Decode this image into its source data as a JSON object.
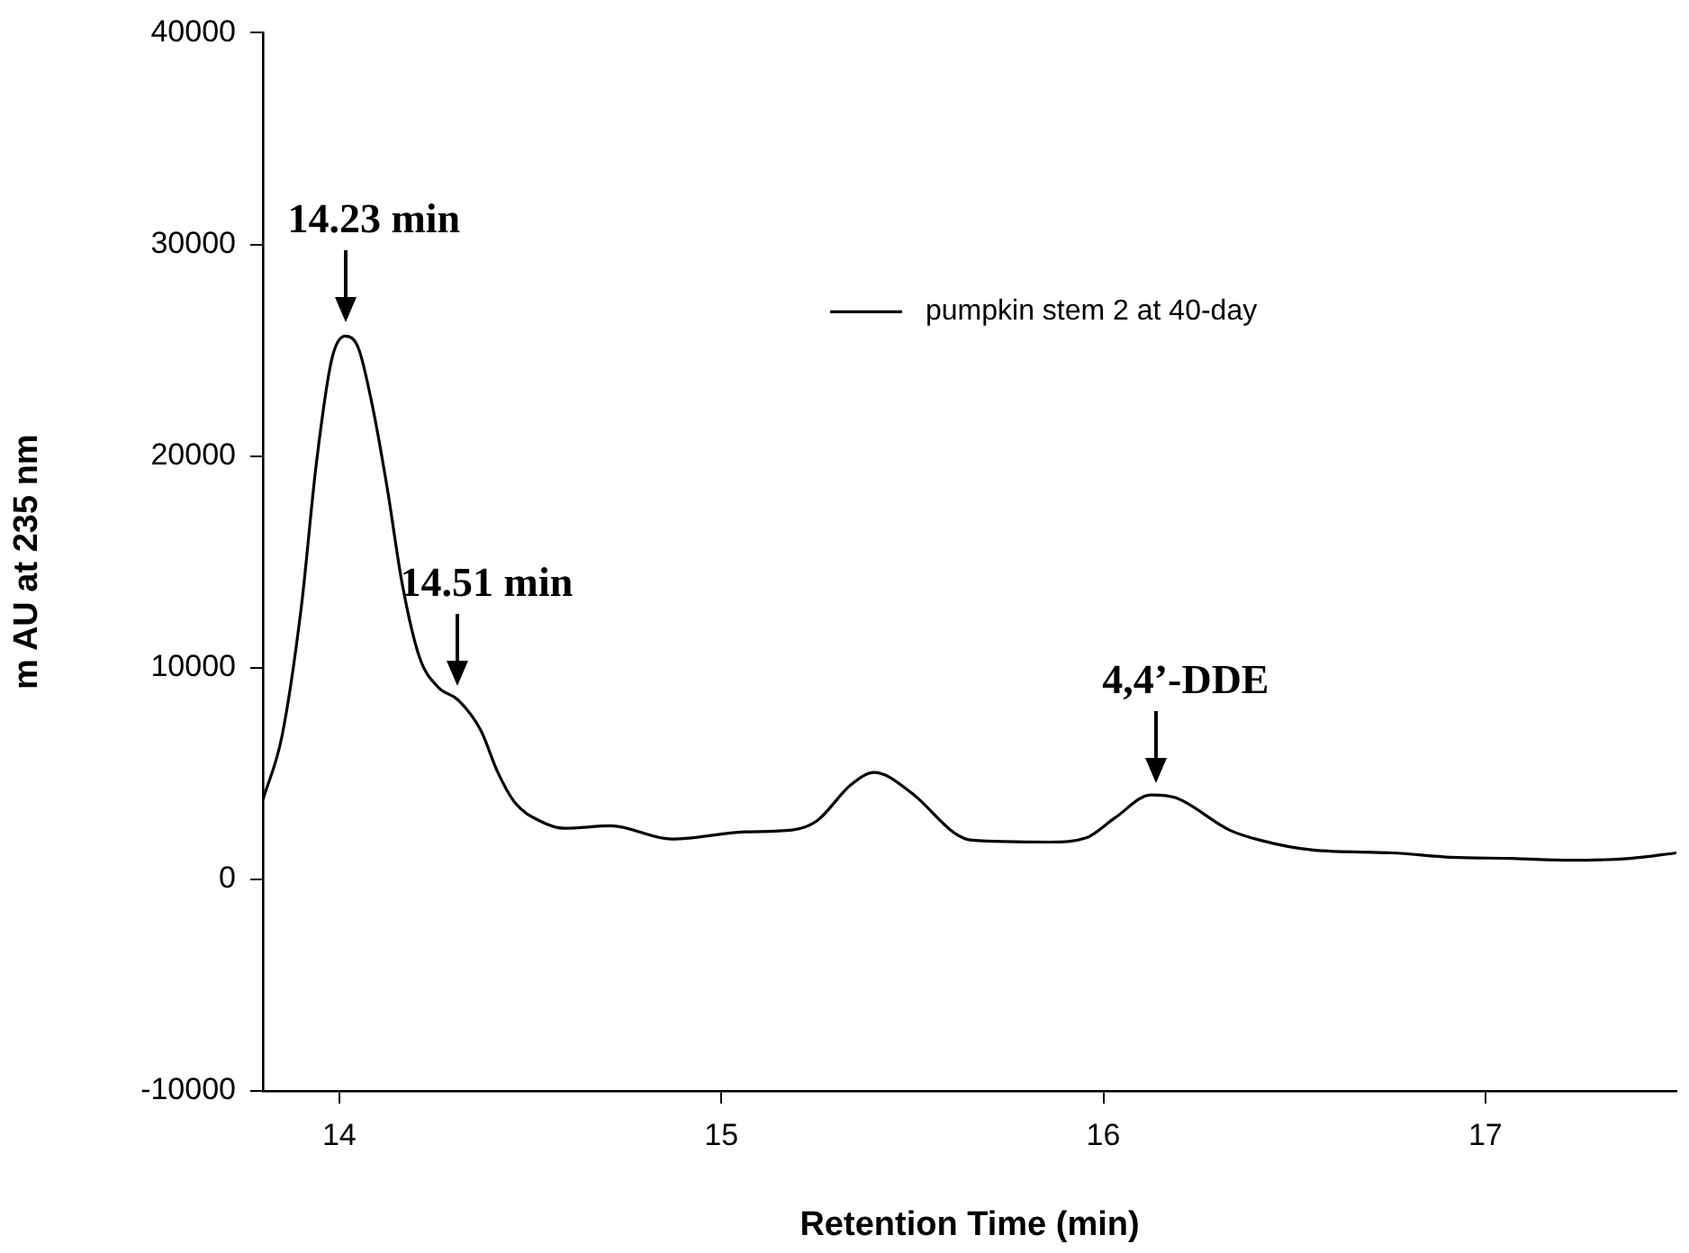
{
  "chart_data": {
    "type": "line",
    "xlabel": "Retention Time (min)",
    "ylabel": "m AU at 235 nm",
    "xlim": [
      13.8,
      17.5
    ],
    "xticks": [
      14,
      15,
      16,
      17
    ],
    "ylim": [
      -10000,
      40000
    ],
    "yticks": [
      -10000,
      0,
      10000,
      20000,
      30000,
      40000
    ],
    "grid": false,
    "legend": "top right",
    "marker": "none",
    "line_style": "solid",
    "annotations": [
      {
        "text": "14.23 min",
        "x": 14.015,
        "y": 25670
      },
      {
        "text": "14.51 min",
        "x": 14.31,
        "y": 8490
      },
      {
        "text": "4,4’-DDE",
        "x": 16.14,
        "y": 3900
      }
    ],
    "series": [
      {
        "name": "pumpkin stem 2 at 40-day",
        "color": "#000000",
        "x": [
          13.8,
          13.85,
          13.9,
          13.94,
          13.98,
          14.015,
          14.05,
          14.085,
          14.125,
          14.165,
          14.21,
          14.26,
          14.31,
          14.37,
          14.415,
          14.46,
          14.525,
          14.59,
          14.71,
          14.87,
          15.06,
          15.185,
          15.25,
          15.34,
          15.4,
          15.5,
          15.61,
          15.655,
          15.86,
          15.955,
          16.03,
          16.125,
          16.19,
          16.33,
          16.41,
          16.55,
          16.755,
          16.91,
          17.07,
          17.22,
          17.38,
          17.5
        ],
        "values": [
          3760,
          6770,
          12780,
          19660,
          24550,
          25670,
          25100,
          22520,
          18540,
          13930,
          10490,
          9060,
          8490,
          7050,
          5050,
          3620,
          2760,
          2410,
          2530,
          1900,
          2240,
          2330,
          2760,
          4480,
          5050,
          4050,
          2190,
          1850,
          1760,
          1960,
          2900,
          3990,
          3850,
          2330,
          1850,
          1380,
          1250,
          1040,
          990,
          900,
          990,
          1250
        ]
      }
    ]
  }
}
